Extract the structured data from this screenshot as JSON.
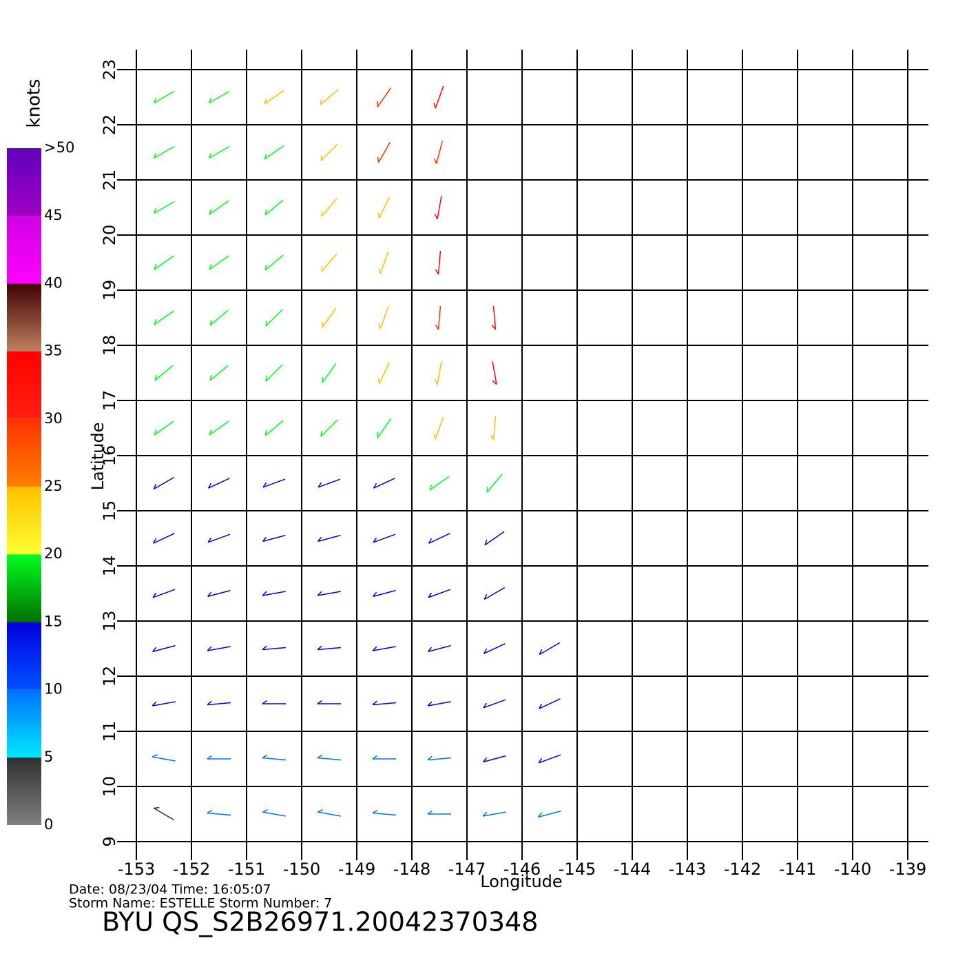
{
  "chart_data": {
    "type": "vector_field",
    "x_label": "Longitude",
    "y_label": "Latitude",
    "xlim": [
      -153,
      -139
    ],
    "ylim": [
      9,
      23
    ],
    "xticks": [
      -153,
      -152,
      -151,
      -150,
      -149,
      -148,
      -147,
      -146,
      -145,
      -144,
      -143,
      -142,
      -141,
      -140,
      -139
    ],
    "yticks": [
      9,
      10,
      11,
      12,
      13,
      14,
      15,
      16,
      17,
      18,
      19,
      20,
      21,
      22,
      23
    ],
    "grid": true,
    "lon": [
      -152.5,
      -151.5,
      -150.5,
      -149.5,
      -148.5,
      -147.5,
      -146.5,
      -145.5
    ],
    "lat": [
      22.5,
      21.5,
      20.5,
      19.5,
      18.5,
      17.5,
      16.5,
      15.5,
      14.5,
      13.5,
      12.5,
      11.5,
      10.5,
      9.5
    ],
    "speed": [
      [
        17,
        18,
        21,
        22,
        27,
        30,
        null,
        null
      ],
      [
        17,
        17,
        19,
        22,
        25,
        28,
        null,
        null
      ],
      [
        16,
        17,
        19,
        21,
        24,
        30,
        null,
        null
      ],
      [
        16,
        17,
        19,
        21,
        22,
        30,
        null,
        null
      ],
      [
        17,
        18,
        19,
        21,
        22,
        26,
        31,
        null
      ],
      [
        16,
        17,
        18,
        19,
        21,
        23,
        30,
        null
      ],
      [
        15,
        15,
        16,
        17,
        18,
        22,
        24,
        null
      ],
      [
        14,
        13,
        14,
        13,
        13,
        16,
        18,
        null
      ],
      [
        13,
        13,
        12,
        12,
        13,
        13,
        14,
        null
      ],
      [
        12,
        12,
        13,
        13,
        12,
        12,
        12,
        null
      ],
      [
        11,
        12,
        12,
        11,
        11,
        11,
        12,
        12
      ],
      [
        10,
        11,
        11,
        10,
        10,
        10,
        11,
        12
      ],
      [
        5,
        8,
        9,
        9,
        9,
        8,
        10,
        11
      ],
      [
        3,
        7,
        8,
        8,
        8,
        8,
        9,
        9
      ]
    ],
    "direction": [
      [
        240,
        240,
        235,
        230,
        215,
        200,
        null,
        null
      ],
      [
        240,
        240,
        235,
        225,
        210,
        195,
        null,
        null
      ],
      [
        240,
        235,
        230,
        220,
        205,
        190,
        null,
        null
      ],
      [
        235,
        235,
        230,
        220,
        200,
        185,
        null,
        null
      ],
      [
        235,
        230,
        225,
        215,
        200,
        185,
        175,
        null
      ],
      [
        230,
        230,
        225,
        215,
        205,
        190,
        170,
        null
      ],
      [
        235,
        235,
        230,
        225,
        215,
        200,
        185,
        null
      ],
      [
        240,
        245,
        250,
        250,
        245,
        235,
        220,
        null
      ],
      [
        245,
        250,
        255,
        255,
        250,
        245,
        235,
        null
      ],
      [
        250,
        255,
        260,
        260,
        255,
        250,
        240,
        null
      ],
      [
        255,
        260,
        265,
        265,
        260,
        255,
        245,
        240
      ],
      [
        260,
        265,
        270,
        270,
        265,
        260,
        250,
        245
      ],
      [
        280,
        270,
        275,
        275,
        270,
        265,
        255,
        250
      ],
      [
        300,
        275,
        280,
        280,
        275,
        270,
        260,
        255
      ]
    ],
    "colorbar": {
      "label": "knots",
      "lim": [
        0,
        50
      ],
      "ticks": [
        0,
        5,
        10,
        15,
        20,
        25,
        30,
        35,
        40,
        45,
        {
          "value": 50,
          "label": ">50"
        }
      ],
      "colors": [
        [
          "#808080",
          "#303030"
        ],
        [
          "#00e8ff",
          "#0070ff"
        ],
        [
          "#0050ff",
          "#0000e0"
        ],
        [
          "#007000",
          "#00ff20"
        ],
        [
          "#ffff30",
          "#ffc000"
        ],
        [
          "#ff8000",
          "#ff3000"
        ],
        [
          "#ff2010",
          "#ff0000"
        ],
        [
          "#c08060",
          "#400000"
        ],
        [
          "#ff00ff",
          "#d000e0"
        ],
        [
          "#a000c0",
          "#6000c0"
        ]
      ]
    },
    "footer": {
      "date_line": "Date:  08/23/04   Time:  16:05:07",
      "storm_line": "Storm  Name:  ESTELLE   Storm  Number:  7",
      "file_id": "BYU  QS_S2B26971.20042370348"
    }
  }
}
